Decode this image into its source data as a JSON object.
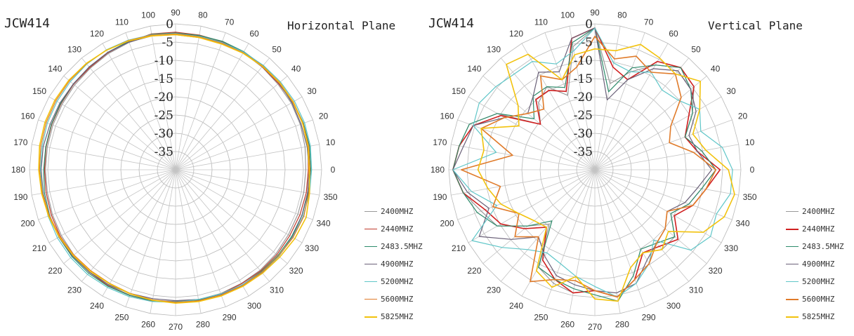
{
  "chart_data": [
    {
      "type": "radar",
      "model": "JCW414",
      "title": "Horizontal Plane",
      "angle_labels": [
        "0",
        "10",
        "20",
        "30",
        "40",
        "50",
        "60",
        "70",
        "80",
        "90",
        "100",
        "110",
        "120",
        "130",
        "140",
        "150",
        "160",
        "170",
        "180",
        "190",
        "200",
        "210",
        "220",
        "230",
        "240",
        "250",
        "260",
        "270",
        "280",
        "290",
        "300",
        "310",
        "320",
        "330",
        "340",
        "350"
      ],
      "radial_labels": [
        "0",
        "-5",
        "-10",
        "-15",
        "-20",
        "-25",
        "-30",
        "-35"
      ],
      "rlim": [
        -35,
        0
      ],
      "grid": true,
      "legend_position": "bottom-right",
      "series": [
        {
          "name": "2400MHZ",
          "color": "#9a9a9a",
          "width": 1.2,
          "values": [
            -3.8,
            -3.5,
            -3.2,
            -3.0,
            -3.0,
            -2.8,
            -2.6,
            -2.4,
            -2.4,
            -2.2,
            -2.2,
            -2.5,
            -2.8,
            -3.2,
            -3.4,
            -3.6,
            -3.7,
            -3.8,
            -3.8,
            -3.8,
            -3.6,
            -3.4,
            -3.2,
            -3.2,
            -3.0,
            -3.0,
            -3.2,
            -3.4,
            -3.4,
            -3.4,
            -3.5,
            -3.5,
            -3.6,
            -3.8,
            -3.8,
            -3.8
          ]
        },
        {
          "name": "2440MHZ",
          "color": "#c0392b",
          "width": 1.2,
          "values": [
            -3.2,
            -2.8,
            -2.6,
            -2.6,
            -2.8,
            -2.7,
            -2.5,
            -2.3,
            -2.2,
            -2.0,
            -1.9,
            -2.3,
            -2.6,
            -3.0,
            -3.1,
            -3.3,
            -3.4,
            -3.5,
            -3.6,
            -3.5,
            -3.3,
            -3.1,
            -3.0,
            -2.9,
            -2.8,
            -2.9,
            -3.0,
            -3.2,
            -3.2,
            -3.3,
            -3.4,
            -3.3,
            -3.3,
            -3.4,
            -3.3,
            -3.2
          ]
        },
        {
          "name": "2483.5MHZ",
          "color": "#2e8b6b",
          "width": 1.2,
          "values": [
            -2.6,
            -2.4,
            -2.4,
            -2.5,
            -2.5,
            -2.4,
            -2.3,
            -2.2,
            -2.3,
            -2.2,
            -2.0,
            -2.2,
            -2.5,
            -2.8,
            -3.0,
            -3.2,
            -3.3,
            -3.4,
            -3.4,
            -3.1,
            -2.9,
            -2.7,
            -2.6,
            -2.6,
            -2.7,
            -2.9,
            -3.1,
            -3.3,
            -3.3,
            -3.2,
            -3.1,
            -3.1,
            -3.0,
            -2.9,
            -2.8,
            -2.7
          ]
        },
        {
          "name": "4900MHZ",
          "color": "#6a6078",
          "width": 1.2,
          "values": [
            -3.0,
            -3.0,
            -3.0,
            -2.8,
            -2.6,
            -2.5,
            -2.4,
            -2.6,
            -2.8,
            -2.6,
            -2.4,
            -2.4,
            -2.5,
            -2.8,
            -3.0,
            -3.0,
            -3.0,
            -2.8,
            -2.8,
            -2.8,
            -2.7,
            -2.7,
            -2.8,
            -2.9,
            -3.1,
            -3.4,
            -3.6,
            -3.6,
            -3.4,
            -3.2,
            -3.0,
            -2.8,
            -2.7,
            -2.7,
            -2.8,
            -2.9
          ]
        },
        {
          "name": "5200MHZ",
          "color": "#5fc6c8",
          "width": 1.2,
          "values": [
            -2.4,
            -2.2,
            -2.1,
            -2.1,
            -2.2,
            -2.3,
            -2.4,
            -2.5,
            -2.5,
            -2.3,
            -2.1,
            -1.9,
            -1.8,
            -1.9,
            -2.1,
            -2.2,
            -2.3,
            -2.5,
            -2.6,
            -2.7,
            -2.5,
            -2.3,
            -2.2,
            -2.2,
            -2.4,
            -2.6,
            -2.9,
            -3.2,
            -3.4,
            -3.3,
            -3.1,
            -2.9,
            -2.7,
            -2.6,
            -2.5,
            -2.4
          ]
        },
        {
          "name": "5600MHZ",
          "color": "#e07b2a",
          "width": 1.2,
          "values": [
            -2.8,
            -2.6,
            -2.5,
            -2.4,
            -2.4,
            -2.5,
            -2.6,
            -2.7,
            -2.6,
            -2.4,
            -2.2,
            -2.0,
            -1.9,
            -1.8,
            -1.8,
            -1.9,
            -2.0,
            -2.2,
            -2.4,
            -2.6,
            -2.8,
            -3.0,
            -3.2,
            -3.4,
            -3.5,
            -3.4,
            -3.3,
            -3.2,
            -3.1,
            -3.0,
            -2.9,
            -2.9,
            -2.8,
            -2.5,
            -2.3,
            -2.6
          ]
        },
        {
          "name": "5825MHZ",
          "color": "#f2c20d",
          "width": 1.6,
          "values": [
            -3.0,
            -2.8,
            -2.6,
            -2.5,
            -2.5,
            -2.6,
            -2.7,
            -2.9,
            -2.8,
            -2.6,
            -2.4,
            -2.1,
            -1.9,
            -1.7,
            -1.6,
            -1.6,
            -1.7,
            -1.9,
            -2.2,
            -2.4,
            -2.6,
            -2.8,
            -3.0,
            -3.2,
            -3.4,
            -3.3,
            -3.2,
            -3.0,
            -2.9,
            -2.8,
            -2.7,
            -2.6,
            -2.4,
            -2.0,
            -1.7,
            -2.4
          ]
        }
      ]
    },
    {
      "type": "radar",
      "model": "JCW414",
      "title": "Vertical Plane",
      "angle_labels": [
        "0",
        "10",
        "20",
        "30",
        "40",
        "50",
        "60",
        "70",
        "80",
        "90",
        "100",
        "110",
        "120",
        "130",
        "140",
        "150",
        "160",
        "170",
        "180",
        "190",
        "200",
        "210",
        "220",
        "230",
        "240",
        "250",
        "260",
        "270",
        "280",
        "290",
        "300",
        "310",
        "320",
        "330",
        "340",
        "350"
      ],
      "radial_labels": [
        "0",
        "-5",
        "-10",
        "-15",
        "-20",
        "-25",
        "-30",
        "-35"
      ],
      "rlim": [
        -35,
        0
      ],
      "grid": true,
      "legend_position": "bottom-right",
      "series": [
        {
          "name": "2400MHZ",
          "color": "#9a9a9a",
          "width": 1.2,
          "values": [
            -6,
            -9,
            -12,
            -8,
            -4,
            -3,
            -6,
            -10,
            -14,
            -1,
            -5,
            -16,
            -12,
            -14,
            -18,
            -8,
            -3,
            -2,
            -1,
            -3,
            -6,
            -8,
            -14,
            -18,
            -8,
            -6,
            -5,
            -6,
            -4,
            -7,
            -12,
            -10,
            -10,
            -14,
            -11,
            -9
          ]
        },
        {
          "name": "2440MHZ",
          "color": "#d02020",
          "width": 1.6,
          "values": [
            -5,
            -10,
            -12,
            -9,
            -4,
            -3,
            -5,
            -12,
            -10,
            -1,
            -3,
            -15,
            -13,
            -13,
            -18,
            -9,
            -4,
            -2,
            -1,
            -3,
            -7,
            -9,
            -13,
            -17,
            -10,
            -7,
            -5,
            -6,
            -4,
            -7,
            -12,
            -11,
            -9,
            -13,
            -10,
            -8
          ]
        },
        {
          "name": "2483.5MHZ",
          "color": "#2e8b6b",
          "width": 1.2,
          "values": [
            -6,
            -9,
            -12,
            -8,
            -5,
            -3,
            -6,
            -9,
            -16,
            -1,
            -4,
            -14,
            -12,
            -12,
            -16,
            -8,
            -3,
            -2,
            -1,
            -3,
            -5,
            -8,
            -14,
            -19,
            -8,
            -7,
            -6,
            -5,
            -3,
            -8,
            -13,
            -12,
            -10,
            -14,
            -11,
            -9
          ]
        },
        {
          "name": "4900MHZ",
          "color": "#6a6078",
          "width": 1.2,
          "values": [
            -7,
            -10,
            -11,
            -7,
            -5,
            -4,
            -7,
            -12,
            -18,
            -1,
            -3,
            -10,
            -8,
            -12,
            -14,
            -10,
            -4,
            -3,
            -1,
            -4,
            -8,
            -3,
            -9,
            -14,
            -11,
            -8,
            -7,
            -6,
            -5,
            -6,
            -10,
            -12,
            -13,
            -15,
            -12,
            -10
          ]
        },
        {
          "name": "5200MHZ",
          "color": "#5fc6c8",
          "width": 1.2,
          "values": [
            -2,
            -4,
            -8,
            -6,
            -9,
            -10,
            -8,
            -10,
            -9,
            -1,
            -6,
            -8,
            -5,
            -5,
            -4,
            -3,
            -4,
            -11,
            -1,
            -5,
            -10,
            -1,
            -6,
            -10,
            -12,
            -11,
            -9,
            -7,
            -4,
            -6,
            -9,
            -13,
            -5,
            -3,
            -4,
            -2
          ]
        },
        {
          "name": "5600MHZ",
          "color": "#e07b2a",
          "width": 1.6,
          "values": [
            -6,
            -11,
            -16,
            -14,
            -8,
            -5,
            -8,
            -6,
            -8,
            -3,
            -10,
            -12,
            -9,
            -16,
            -14,
            -10,
            -6,
            -15,
            -3,
            -12,
            -9,
            -14,
            -10,
            -14,
            -4,
            -7,
            -8,
            -6,
            -4,
            -7,
            -9,
            -12,
            -13,
            -15,
            -10,
            -8
          ]
        },
        {
          "name": "5825MHZ",
          "color": "#f2c20d",
          "width": 1.6,
          "values": [
            -3,
            -8,
            -10,
            -6,
            -2,
            -5,
            -4,
            -3,
            -6,
            -6,
            -7,
            -12,
            -3,
            -2,
            -11,
            -14,
            -6,
            -8,
            -7,
            -9,
            -11,
            -14,
            -16,
            -17,
            -7,
            -5,
            -9,
            -4,
            -3,
            -10,
            -12,
            -10,
            -12,
            -5,
            -2,
            -1
          ]
        }
      ]
    }
  ]
}
